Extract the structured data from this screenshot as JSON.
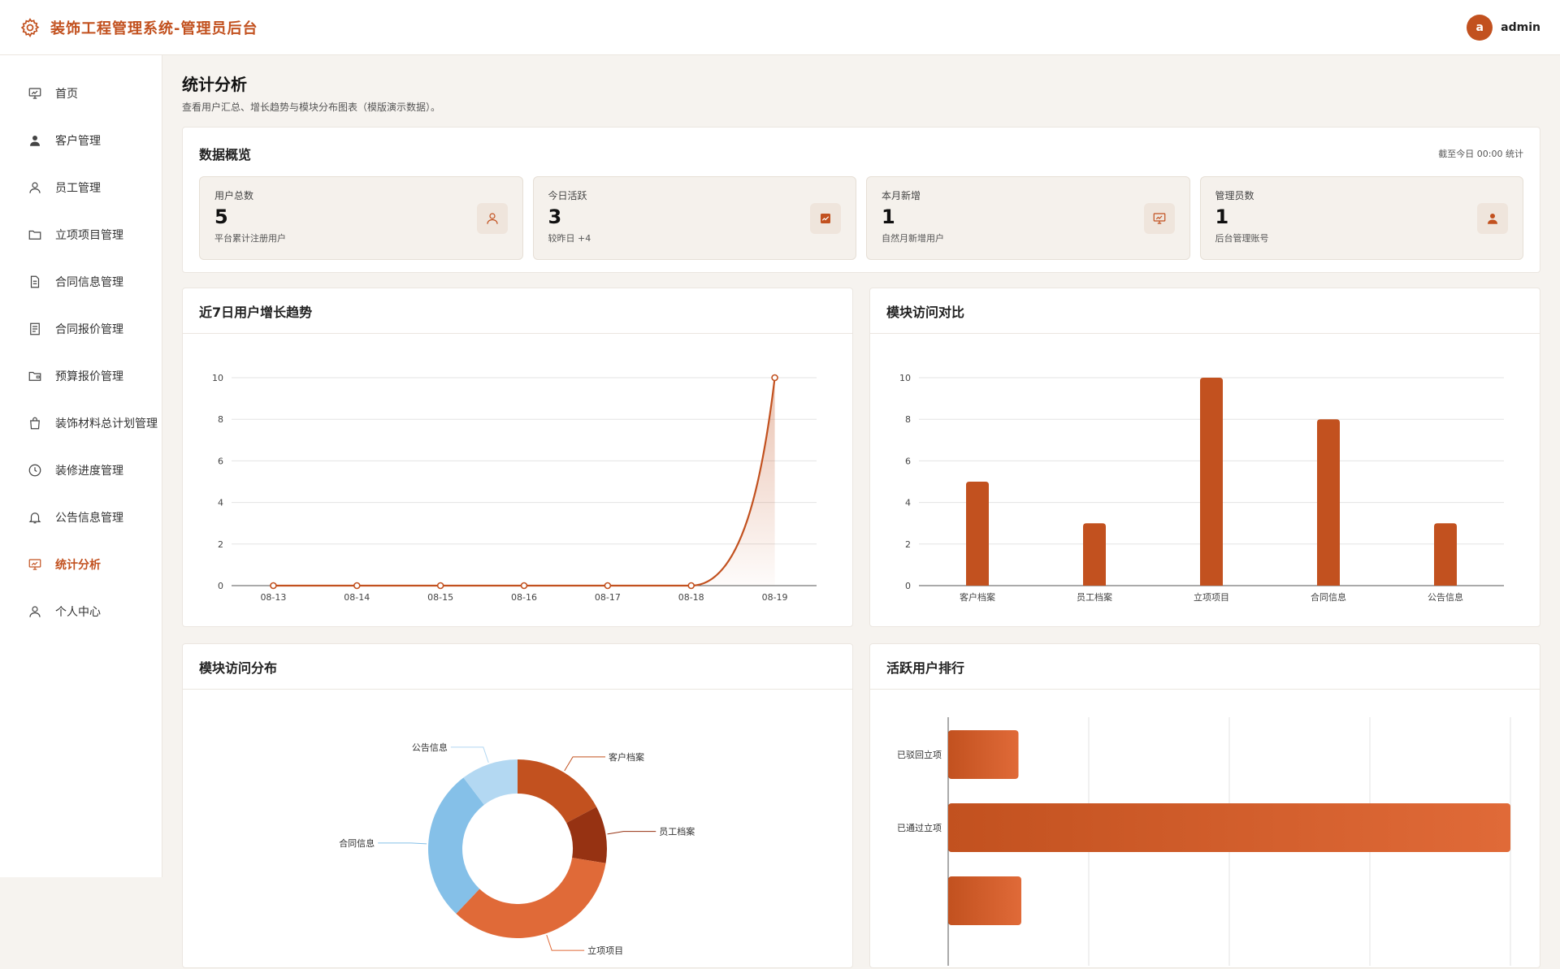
{
  "app": {
    "title": "装饰工程管理系统-管理员后台"
  },
  "user": {
    "avatar_letter": "a",
    "name": "admin"
  },
  "sidebar": {
    "items": [
      {
        "label": "首页",
        "icon": "presentation-chart-icon"
      },
      {
        "label": "客户管理",
        "icon": "user-filled-icon"
      },
      {
        "label": "员工管理",
        "icon": "user-outline-icon"
      },
      {
        "label": "立项项目管理",
        "icon": "folder-icon"
      },
      {
        "label": "合同信息管理",
        "icon": "document-icon"
      },
      {
        "label": "合同报价管理",
        "icon": "document-list-icon"
      },
      {
        "label": "预算报价管理",
        "icon": "folder-open-icon"
      },
      {
        "label": "装饰材料总计划管理",
        "icon": "bag-icon"
      },
      {
        "label": "装修进度管理",
        "icon": "clock-icon"
      },
      {
        "label": "公告信息管理",
        "icon": "bell-icon"
      },
      {
        "label": "统计分析",
        "icon": "presentation-chart-icon",
        "active": true
      },
      {
        "label": "个人中心",
        "icon": "user-outline-icon"
      }
    ]
  },
  "page": {
    "title": "统计分析",
    "subtitle": "查看用户汇总、增长趋势与模块分布图表（模版演示数据）。"
  },
  "overview": {
    "title": "数据概览",
    "note": "截至今日 00:00 统计",
    "stats": [
      {
        "label": "用户总数",
        "value": "5",
        "desc": "平台累计注册用户",
        "icon": "user-outline-icon"
      },
      {
        "label": "今日活跃",
        "value": "3",
        "desc": "较昨日 +4",
        "icon": "trend-chart-icon"
      },
      {
        "label": "本月新增",
        "value": "1",
        "desc": "自然月新增用户",
        "icon": "presentation-chart-icon"
      },
      {
        "label": "管理员数",
        "value": "1",
        "desc": "后台管理账号",
        "icon": "user-filled-icon"
      }
    ]
  },
  "colors": {
    "accent": "#c2511f",
    "accent_light": "#e06a38",
    "blue": "#85c0e8",
    "blue_light": "#b3d8f2",
    "dark_red": "#963212"
  },
  "chart_data": [
    {
      "type": "line",
      "title": "近7日用户增长趋势",
      "x": [
        "08-13",
        "08-14",
        "08-15",
        "08-16",
        "08-17",
        "08-18",
        "08-19"
      ],
      "series": [
        {
          "values": [
            0,
            0,
            0,
            0,
            0,
            0,
            10
          ]
        }
      ],
      "yticks": [
        0,
        2,
        4,
        6,
        8,
        10
      ],
      "ylim": [
        0,
        10
      ],
      "grid": true
    },
    {
      "type": "bar",
      "title": "模块访问对比",
      "categories": [
        "客户档案",
        "员工档案",
        "立项项目",
        "合同信息",
        "公告信息"
      ],
      "values": [
        5,
        3,
        10,
        8,
        3
      ],
      "yticks": [
        0,
        2,
        4,
        6,
        8,
        10
      ],
      "ylim": [
        0,
        10
      ],
      "grid": true
    },
    {
      "type": "pie",
      "title": "模块访问分布",
      "donut": true,
      "slices": [
        {
          "label": "客户档案",
          "value": 5,
          "color": "#c2511f"
        },
        {
          "label": "员工档案",
          "value": 3,
          "color": "#963212"
        },
        {
          "label": "立项项目",
          "value": 10,
          "color": "#e06a38"
        },
        {
          "label": "合同信息",
          "value": 8,
          "color": "#85c0e8"
        },
        {
          "label": "公告信息",
          "value": 3,
          "color": "#b3d8f2"
        }
      ]
    },
    {
      "type": "bar",
      "orientation": "horizontal",
      "title": "活跃用户排行",
      "categories": [
        "已驳回立项",
        "已通过立项"
      ],
      "values": [
        1,
        8
      ],
      "xlim": [
        0,
        8
      ],
      "grid": true
    }
  ]
}
